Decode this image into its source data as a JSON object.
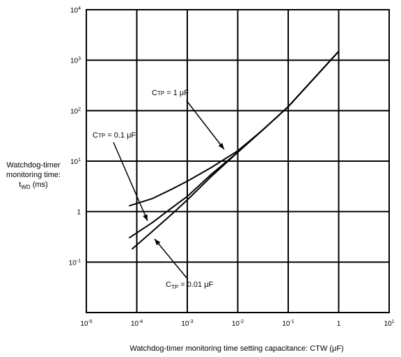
{
  "chart_data": {
    "type": "line",
    "x_scale": "log",
    "y_scale": "log",
    "xlim": [
      1e-05,
      10
    ],
    "ylim": [
      0.01,
      10000
    ],
    "grid": true,
    "x_ticks": [
      {
        "base": "10",
        "exp": "-5"
      },
      {
        "base": "10",
        "exp": "-4"
      },
      {
        "base": "10",
        "exp": "-3"
      },
      {
        "base": "10",
        "exp": "-2"
      },
      {
        "base": "10",
        "exp": "-1"
      },
      {
        "base": "1",
        "exp": ""
      },
      {
        "base": "10",
        "exp": "1"
      }
    ],
    "y_ticks": [
      {
        "base": "10",
        "exp": "4"
      },
      {
        "base": "10",
        "exp": "3"
      },
      {
        "base": "10",
        "exp": "2"
      },
      {
        "base": "10",
        "exp": "1"
      },
      {
        "base": "1",
        "exp": ""
      },
      {
        "base": "10",
        "exp": "-1"
      }
    ],
    "xlabel": "Watchdog-timer monitoring time setting capacitance:  CTW (μF)",
    "ylabel_lines": [
      "Watchdog-timer",
      "monitoring time:",
      "t",
      "(ms)"
    ],
    "ylabel_sub": "WD",
    "series": [
      {
        "name": "CTP = 1 μF",
        "x": [
          7e-05,
          0.0002,
          0.0005,
          0.001,
          0.003,
          0.01,
          0.03,
          0.1,
          1
        ],
        "y": [
          1.3,
          1.8,
          2.8,
          4.0,
          7.5,
          16,
          40,
          120,
          1500
        ]
      },
      {
        "name": "CTP = 0.1 μF",
        "x": [
          7e-05,
          0.0002,
          0.0005,
          0.001,
          0.003,
          0.01,
          0.03,
          0.1,
          1
        ],
        "y": [
          0.3,
          0.6,
          1.2,
          2.0,
          5.5,
          15,
          40,
          120,
          1500
        ]
      },
      {
        "name": "CTP = 0.01 μF",
        "x": [
          8e-05,
          0.0002,
          0.0005,
          0.001,
          0.003,
          0.01,
          0.03,
          0.1,
          1
        ],
        "y": [
          0.18,
          0.4,
          0.9,
          1.7,
          5.0,
          15,
          40,
          120,
          1500
        ]
      }
    ],
    "annotations": [
      {
        "text_main": "C",
        "text_sub": "TP",
        "text_rest": " = 1 μF"
      },
      {
        "text_main": "C",
        "text_sub": "TP",
        "text_rest": " = 0.1 μF"
      },
      {
        "text_main": "C",
        "text_sub": "TP",
        "text_rest": " = 0.01 μF"
      }
    ]
  }
}
